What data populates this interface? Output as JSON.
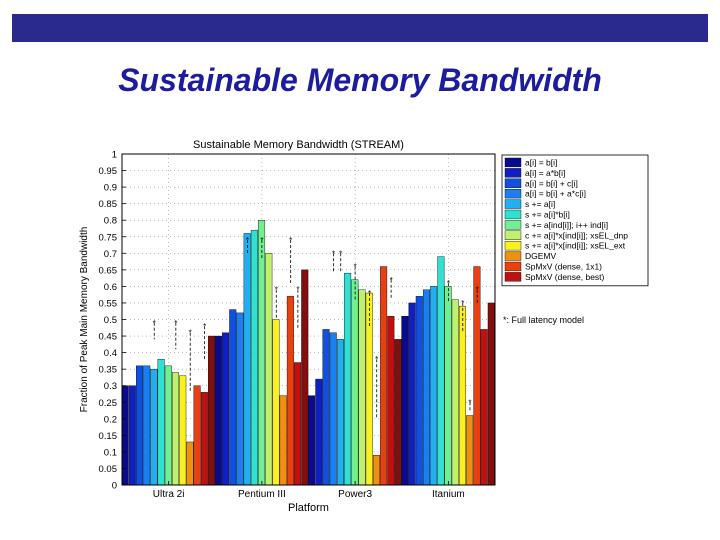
{
  "slide": {
    "title": "Sustainable Memory Bandwidth"
  },
  "colors": {
    "top_bar": "#2a2a8c",
    "title": "#1c1c9c"
  },
  "chart_data": {
    "type": "bar",
    "title": "Sustainable Memory Bandwidth (STREAM)",
    "xlabel": "Platform",
    "ylabel": "Fraction of Peak Main Memory Bandwidth",
    "ylim": [
      0,
      1
    ],
    "yticks": [
      "0",
      "0.05",
      "0.1",
      "0.15",
      "0.2",
      "0.25",
      "0.3",
      "0.35",
      "0.4",
      "0.45",
      "0.5",
      "0.55",
      "0.6",
      "0.65",
      "0.7",
      "0.75",
      "0.8",
      "0.85",
      "0.9",
      "0.95",
      "1"
    ],
    "grid": true,
    "categories": [
      "Ultra 2i",
      "Pentium III",
      "Power3",
      "Itanium"
    ],
    "series": [
      {
        "name": "a[i] = b[i]",
        "color": "#0a0a8c",
        "values": [
          0.3,
          0.45,
          0.27,
          0.51
        ]
      },
      {
        "name": "a[i] = a*b[i]",
        "color": "#1020c0",
        "values": [
          0.3,
          0.46,
          0.32,
          0.55
        ]
      },
      {
        "name": "a[i] = b[i] + c[i]",
        "color": "#1050e0",
        "values": [
          0.36,
          0.53,
          0.47,
          0.57
        ]
      },
      {
        "name": "a[i] = b[i] + a*c[i]",
        "color": "#1880f0",
        "values": [
          0.36,
          0.52,
          0.46,
          0.59
        ]
      },
      {
        "name": "s += a[i]",
        "color": "#20b0f0",
        "values": [
          0.35,
          0.76,
          0.44,
          0.6
        ]
      },
      {
        "name": "s += a[i]*b[i]",
        "color": "#30e0d0",
        "values": [
          0.38,
          0.77,
          0.64,
          0.69
        ]
      },
      {
        "name": "s += a[ind[i]]; i++ ind[i]",
        "color": "#70f090",
        "values": [
          0.36,
          0.8,
          0.62,
          0.6
        ]
      },
      {
        "name": "c += a[i]*x[ind[i]]; xsEL_dnp",
        "color": "#c0f070",
        "values": [
          0.34,
          0.7,
          0.59,
          0.56
        ]
      },
      {
        "name": "s += a[i]*x[ind[i]]; xsEL_ext",
        "color": "#f8f020",
        "values": [
          0.33,
          0.5,
          0.58,
          0.54
        ]
      },
      {
        "name": "DGEMV",
        "color": "#f09010",
        "values": [
          0.13,
          0.27,
          0.09,
          0.21
        ]
      },
      {
        "name": "SpMxV (dense, 1x1)",
        "color": "#e84010",
        "values": [
          0.3,
          0.57,
          0.66,
          0.66
        ]
      },
      {
        "name": "SpMxV (dense, best)",
        "color": "#c01010",
        "values": [
          0.28,
          0.37,
          0.51,
          0.47
        ]
      },
      {
        "name": "",
        "color": "#801010",
        "values": [
          0.45,
          0.65,
          0.44,
          0.55
        ]
      }
    ],
    "legend": {
      "placement": "top-right"
    },
    "model_note": "*: Full latency model"
  }
}
